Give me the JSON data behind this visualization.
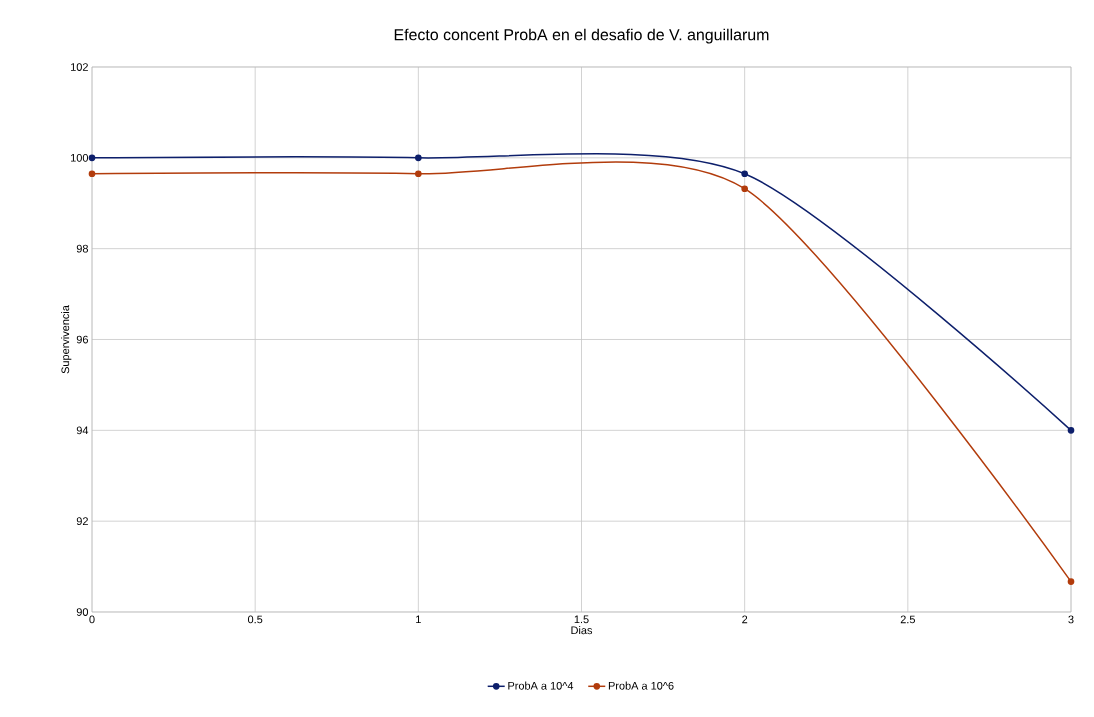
{
  "chart_data": {
    "type": "line",
    "title": "Efecto concent ProbA en el desafio de V. anguillarum",
    "xlabel": "Dias",
    "ylabel": "Supervivencia",
    "x": [
      0,
      1,
      2,
      3
    ],
    "series": [
      {
        "name": "ProbA a 10^4",
        "color": "#0d1f6b",
        "values": [
          100,
          100,
          99.65,
          94
        ]
      },
      {
        "name": "ProbA a 10^6",
        "color": "#b23c0c",
        "values": [
          99.65,
          99.65,
          99.32,
          90.67
        ]
      }
    ],
    "xlim": [
      0,
      3
    ],
    "xticks": [
      0,
      0.5,
      1,
      1.5,
      2,
      2.5,
      3
    ],
    "ylim": [
      90,
      102
    ],
    "yticks": [
      90,
      92,
      94,
      96,
      98,
      100,
      102
    ],
    "grid": true,
    "legend": "bottom",
    "marker": "circle",
    "line_style": "solid"
  }
}
